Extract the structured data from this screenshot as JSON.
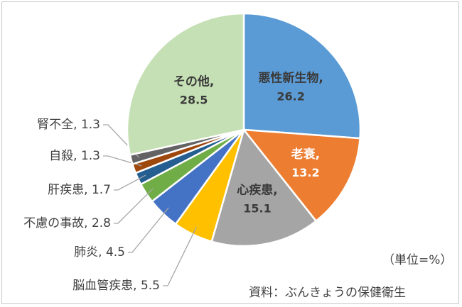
{
  "chart_data": {
    "type": "pie",
    "start_angle_deg": 0,
    "direction": "clockwise",
    "slices": [
      {
        "label": "悪性新生物",
        "value": 26.2,
        "color": "#5b9bd5",
        "inside": true,
        "text_color": "#3a3a3a"
      },
      {
        "label": "老衰",
        "value": 13.2,
        "color": "#ed7d31",
        "inside": true,
        "text_color": "#ffffff"
      },
      {
        "label": "心疾患",
        "value": 15.1,
        "color": "#a5a5a5",
        "inside": true,
        "text_color": "#3a3a3a"
      },
      {
        "label": "脳血管疾患",
        "value": 5.5,
        "color": "#ffc000",
        "inside": false
      },
      {
        "label": "肺炎",
        "value": 4.5,
        "color": "#4472c4",
        "inside": false
      },
      {
        "label": "不慮の事故",
        "value": 2.8,
        "color": "#70ad47",
        "inside": false
      },
      {
        "label": "肝疾患",
        "value": 1.7,
        "color": "#255e91",
        "inside": false
      },
      {
        "label": "自殺",
        "value": 1.3,
        "color": "#9e480e",
        "inside": false
      },
      {
        "label": "腎不全",
        "value": 1.3,
        "color": "#636363",
        "inside": false
      },
      {
        "label": "その他",
        "value": 28.5,
        "color": "#c5e0b4",
        "inside": true,
        "text_color": "#3a3a3a"
      }
    ]
  },
  "notes": {
    "unit": "（単位=%）",
    "source": "資料：ぶんきょうの保健衛生"
  }
}
